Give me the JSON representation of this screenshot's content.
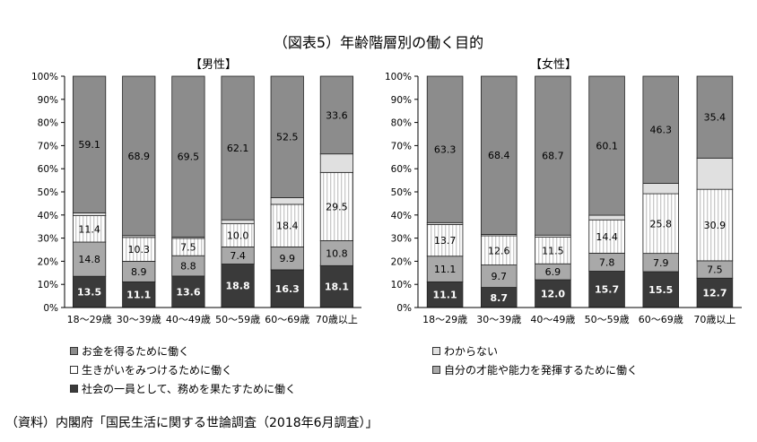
{
  "title": "（図表5）年齢階層別の働く目的",
  "source": "（資料）内閣府「国民生活に関する世論調査（2018年6月調査）」",
  "colors": {
    "money": "#8c8c8c",
    "purpose": "#ffffff",
    "social": "#3a3a3a",
    "unknown": "#e0e0e0",
    "talent": "#a9a9a9",
    "stripe": "#c9c9c9"
  },
  "legend": [
    {
      "key": "money",
      "label": "お金を得るために働く"
    },
    {
      "key": "unknown",
      "label": "わからない"
    },
    {
      "key": "purpose",
      "label": "生きがいをみつけるために働く"
    },
    {
      "key": "talent",
      "label": "自分の才能や能力を発揮するために働く"
    },
    {
      "key": "social",
      "label": "社会の一員として、務めを果たすために働く"
    }
  ],
  "chart_data": [
    {
      "type": "bar",
      "stacked": true,
      "title": "【男性】",
      "categories": [
        "18～29歳",
        "30～39歳",
        "40～49歳",
        "50～59歳",
        "60～69歳",
        "70歳以上"
      ],
      "ylim": [
        0,
        100
      ],
      "yticks": [
        "0%",
        "10%",
        "20%",
        "30%",
        "40%",
        "50%",
        "60%",
        "70%",
        "80%",
        "90%",
        "100%"
      ],
      "series": [
        {
          "key": "social",
          "values": [
            13.5,
            11.1,
            13.6,
            18.8,
            16.3,
            18.1
          ],
          "labels": [
            "13.5",
            "11.1",
            "13.6",
            "18.8",
            "16.3",
            "18.1"
          ]
        },
        {
          "key": "talent",
          "values": [
            14.8,
            8.9,
            8.8,
            7.4,
            9.9,
            10.8
          ],
          "labels": [
            "14.8",
            "8.9",
            "8.8",
            "7.4",
            "9.9",
            "10.8"
          ]
        },
        {
          "key": "purpose",
          "values": [
            11.4,
            10.3,
            7.5,
            10.0,
            18.4,
            29.5
          ],
          "labels": [
            "11.4",
            "10.3",
            "7.5",
            "10.0",
            "18.4",
            "29.5"
          ]
        },
        {
          "key": "unknown",
          "values": [
            1.2,
            0.8,
            0.6,
            1.7,
            2.9,
            8.0
          ],
          "labels": [
            "",
            "",
            "",
            "",
            "",
            ""
          ]
        },
        {
          "key": "money",
          "values": [
            59.1,
            68.9,
            69.5,
            62.1,
            52.5,
            33.6
          ],
          "labels": [
            "59.1",
            "68.9",
            "69.5",
            "62.1",
            "52.5",
            "33.6"
          ]
        }
      ]
    },
    {
      "type": "bar",
      "stacked": true,
      "title": "【女性】",
      "categories": [
        "18～29歳",
        "30～39歳",
        "40～49歳",
        "50～59歳",
        "60～69歳",
        "70歳以上"
      ],
      "ylim": [
        0,
        100
      ],
      "yticks": [
        "0%",
        "10%",
        "20%",
        "30%",
        "40%",
        "50%",
        "60%",
        "70%",
        "80%",
        "90%",
        "100%"
      ],
      "series": [
        {
          "key": "social",
          "values": [
            11.1,
            8.7,
            12.0,
            15.7,
            15.5,
            12.7
          ],
          "labels": [
            "11.1",
            "8.7",
            "12.0",
            "15.7",
            "15.5",
            "12.7"
          ]
        },
        {
          "key": "talent",
          "values": [
            11.1,
            9.7,
            6.9,
            7.8,
            7.9,
            7.5
          ],
          "labels": [
            "11.1",
            "9.7",
            "6.9",
            "7.8",
            "7.9",
            "7.5"
          ]
        },
        {
          "key": "purpose",
          "values": [
            13.7,
            12.6,
            11.5,
            14.4,
            25.8,
            30.9
          ],
          "labels": [
            "13.7",
            "12.6",
            "11.5",
            "14.4",
            "25.8",
            "30.9"
          ]
        },
        {
          "key": "unknown",
          "values": [
            0.8,
            0.6,
            0.9,
            2.0,
            4.5,
            13.5
          ],
          "labels": [
            "",
            "",
            "",
            "",
            "",
            ""
          ]
        },
        {
          "key": "money",
          "values": [
            63.3,
            68.4,
            68.7,
            60.1,
            46.3,
            35.4
          ],
          "labels": [
            "63.3",
            "68.4",
            "68.7",
            "60.1",
            "46.3",
            "35.4"
          ]
        }
      ]
    }
  ]
}
